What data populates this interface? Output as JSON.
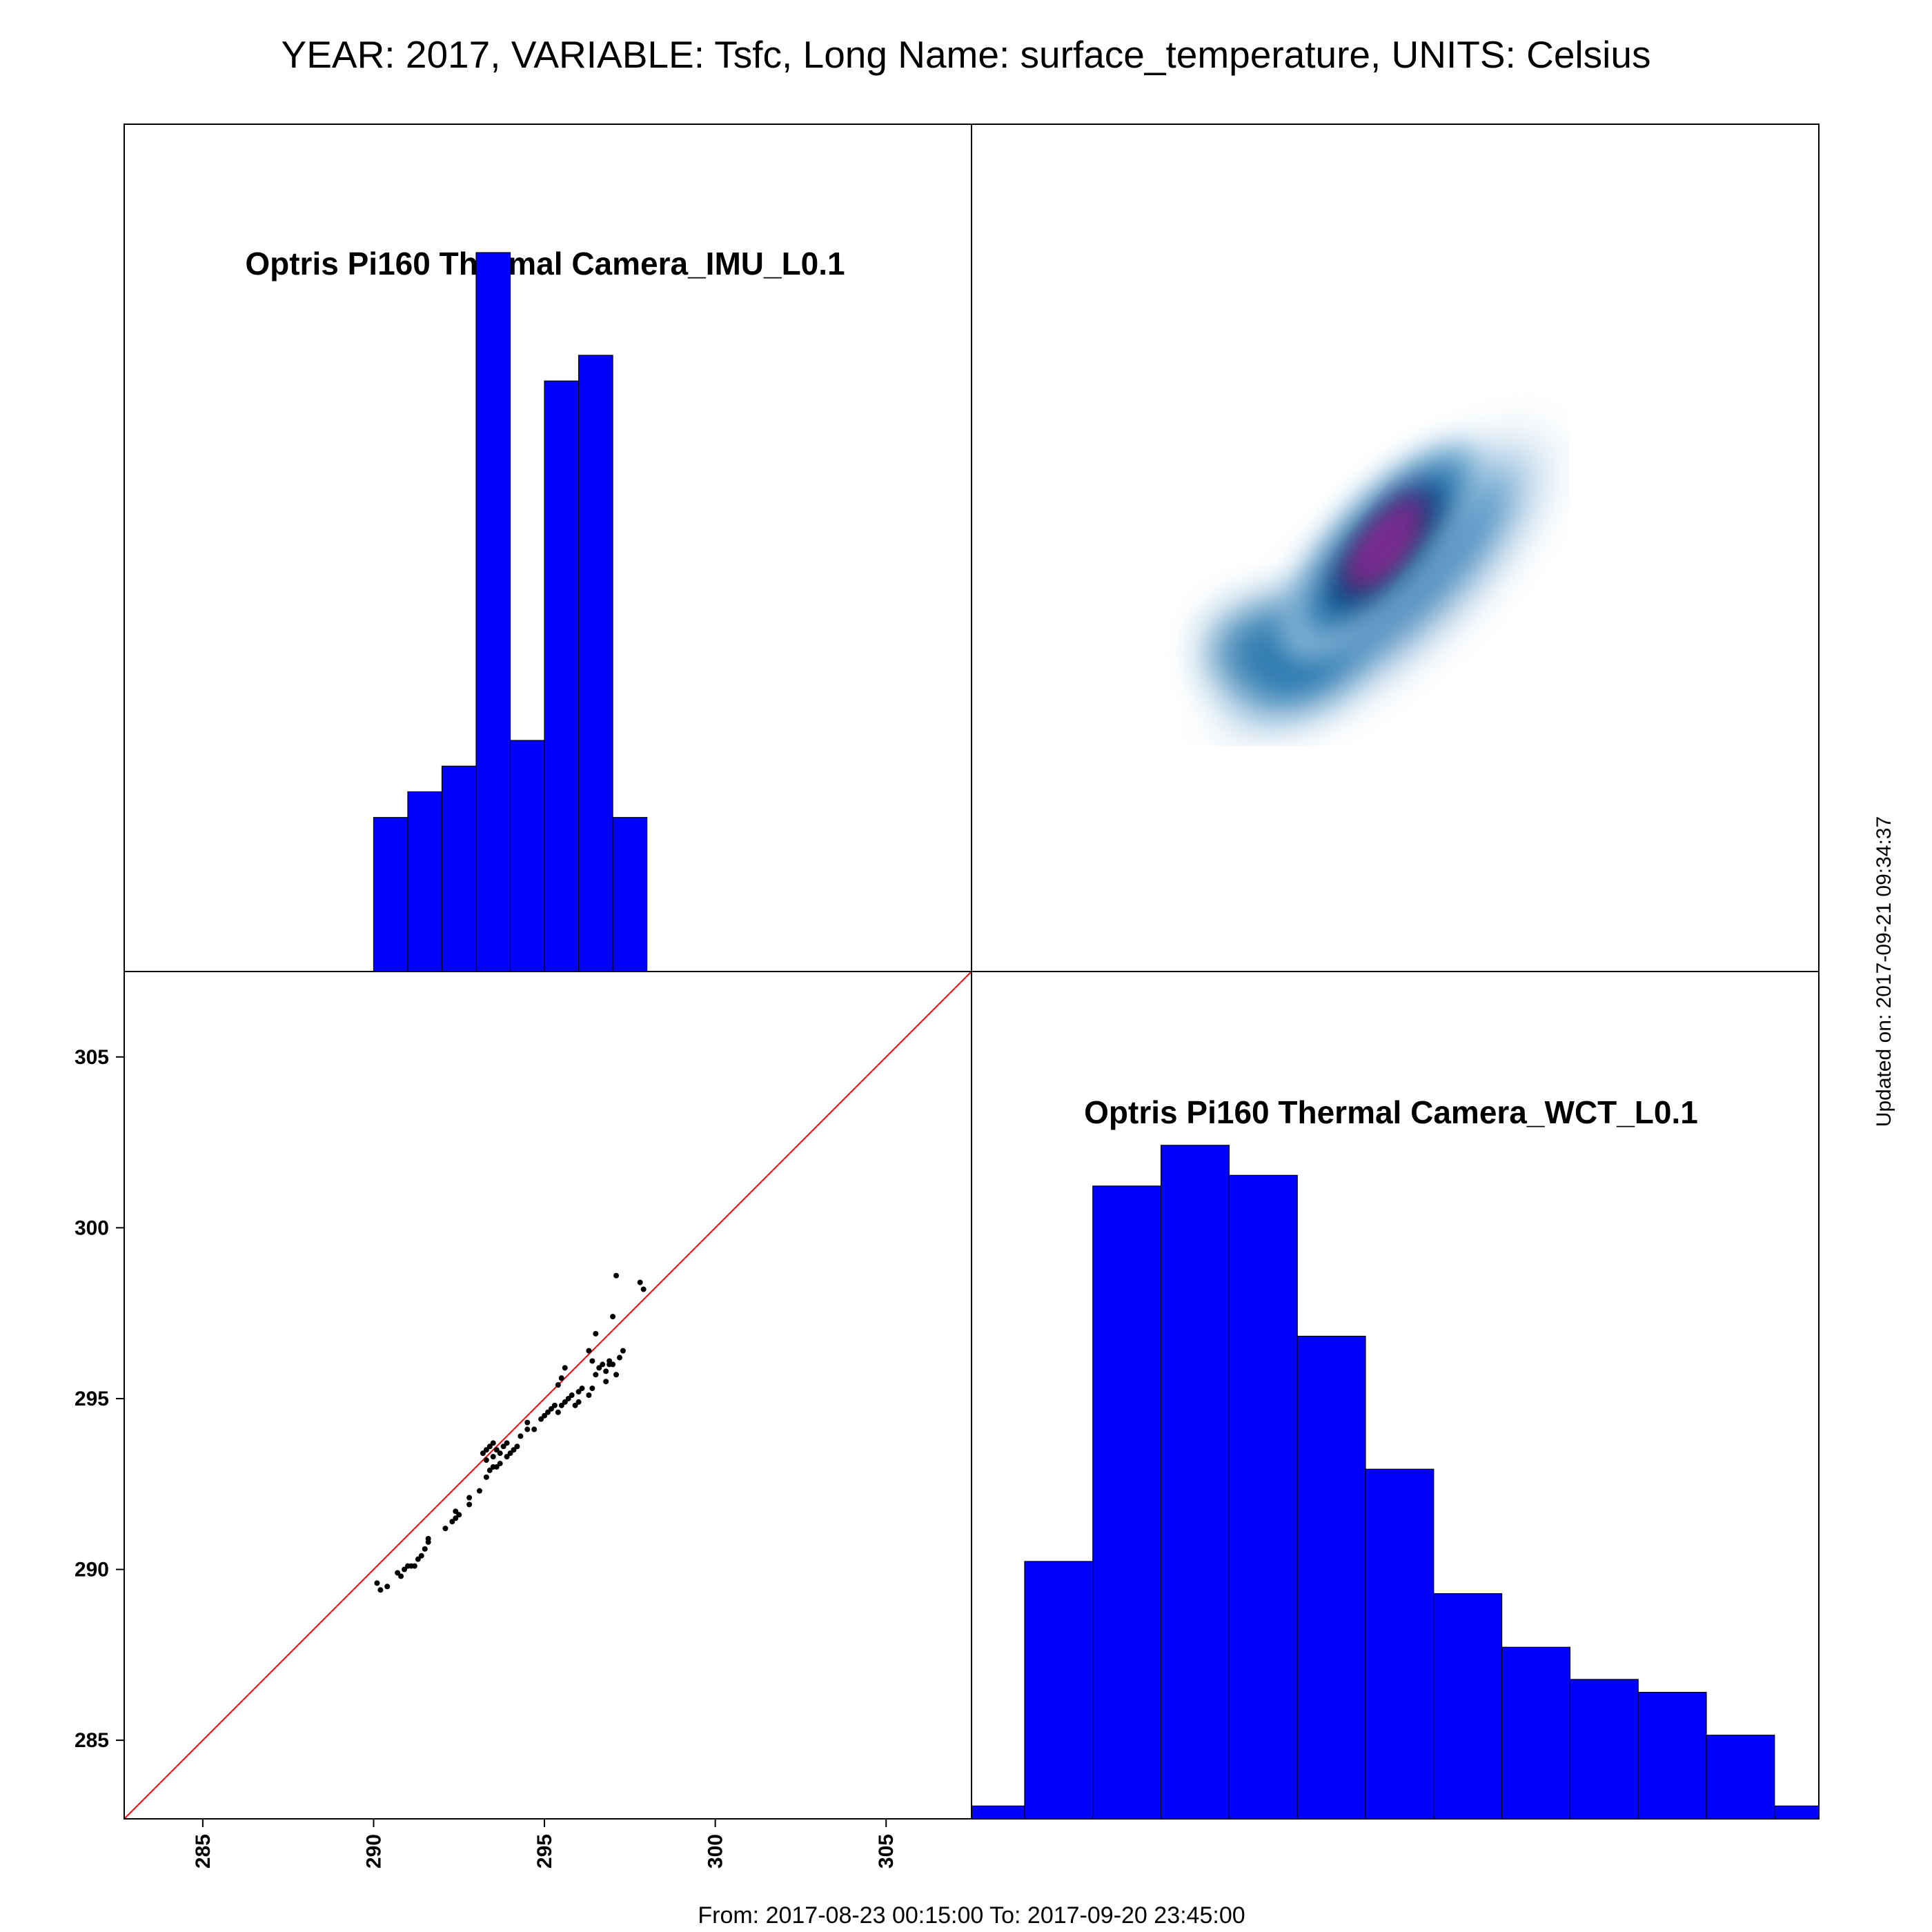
{
  "header": {
    "title": "YEAR: 2017, VARIABLE: Tsfc, Long Name: surface_temperature, UNITS: Celsius"
  },
  "footer": {
    "date_range": "From: 2017-08-23 00:15:00 To: 2017-09-20 23:45:00",
    "updated": "Updated on: 2017-09-21 09:34:37"
  },
  "colors": {
    "bar_fill": "#0000ff",
    "identity_line": "#ff0000",
    "point": "#000000",
    "density_low": "#ffffff",
    "density_mid": "#1f6fa8",
    "density_core": "#0b2d63",
    "density_peak": "#7a2a8f"
  },
  "chart_data": [
    {
      "type": "bar",
      "panel": "top-left",
      "title": "Optris Pi160 Thermal Camera_IMU_L0.1",
      "x_range": [
        282.7,
        307.5
      ],
      "bins": [
        {
          "x0": 290.0,
          "x1": 291.0,
          "count": 3
        },
        {
          "x0": 291.0,
          "x1": 292.0,
          "count": 3.5
        },
        {
          "x0": 292.0,
          "x1": 293.0,
          "count": 4
        },
        {
          "x0": 293.0,
          "x1": 294.0,
          "count": 14
        },
        {
          "x0": 294.0,
          "x1": 295.0,
          "count": 4.5
        },
        {
          "x0": 295.0,
          "x1": 296.0,
          "count": 11.5
        },
        {
          "x0": 296.0,
          "x1": 297.0,
          "count": 12
        },
        {
          "x0": 297.0,
          "x1": 298.0,
          "count": 3
        }
      ],
      "ylim": [
        0,
        16.5
      ]
    },
    {
      "type": "heatmap",
      "panel": "top-right",
      "x_range": [
        282.7,
        307.5
      ],
      "y_range": [
        282.7,
        307.5
      ],
      "extent": {
        "x": [
          287.9,
          300.2
        ],
        "y": [
          289.3,
          300.2
        ]
      },
      "peak": {
        "x": 294.8,
        "y": 295.1
      }
    },
    {
      "type": "scatter",
      "panel": "bottom-left",
      "x_ticks": [
        285,
        290,
        295,
        300,
        305
      ],
      "y_ticks": [
        285,
        290,
        295,
        300,
        305
      ],
      "xlim": [
        282.7,
        307.5
      ],
      "ylim": [
        282.7,
        307.5
      ],
      "identity_line": true,
      "points": [
        [
          290.1,
          289.6
        ],
        [
          290.2,
          289.4
        ],
        [
          290.4,
          289.5
        ],
        [
          290.7,
          289.9
        ],
        [
          290.8,
          289.8
        ],
        [
          290.9,
          290.0
        ],
        [
          291.0,
          290.1
        ],
        [
          291.1,
          290.1
        ],
        [
          291.2,
          290.1
        ],
        [
          291.3,
          290.3
        ],
        [
          291.4,
          290.4
        ],
        [
          291.5,
          290.6
        ],
        [
          291.6,
          290.8
        ],
        [
          291.6,
          290.9
        ],
        [
          292.1,
          291.2
        ],
        [
          292.3,
          291.4
        ],
        [
          292.4,
          291.5
        ],
        [
          292.4,
          291.7
        ],
        [
          292.5,
          291.6
        ],
        [
          292.8,
          291.9
        ],
        [
          292.8,
          292.1
        ],
        [
          293.1,
          292.3
        ],
        [
          293.3,
          292.7
        ],
        [
          293.4,
          292.9
        ],
        [
          293.5,
          293.0
        ],
        [
          293.6,
          293.0
        ],
        [
          293.2,
          293.4
        ],
        [
          293.3,
          293.5
        ],
        [
          293.4,
          293.6
        ],
        [
          293.5,
          293.3
        ],
        [
          293.6,
          293.5
        ],
        [
          293.7,
          293.4
        ],
        [
          293.8,
          293.6
        ],
        [
          293.9,
          293.7
        ],
        [
          293.3,
          293.2
        ],
        [
          293.5,
          293.7
        ],
        [
          293.7,
          293.1
        ],
        [
          293.9,
          293.3
        ],
        [
          294.0,
          293.4
        ],
        [
          294.1,
          293.5
        ],
        [
          294.2,
          293.6
        ],
        [
          294.3,
          293.9
        ],
        [
          294.5,
          294.1
        ],
        [
          294.5,
          294.3
        ],
        [
          294.7,
          294.1
        ],
        [
          294.9,
          294.4
        ],
        [
          295.0,
          294.5
        ],
        [
          295.1,
          294.6
        ],
        [
          295.2,
          294.7
        ],
        [
          295.3,
          294.8
        ],
        [
          295.4,
          294.6
        ],
        [
          295.5,
          294.8
        ],
        [
          295.6,
          294.9
        ],
        [
          295.7,
          295.0
        ],
        [
          295.8,
          295.1
        ],
        [
          295.9,
          294.8
        ],
        [
          296.0,
          294.9
        ],
        [
          296.0,
          295.2
        ],
        [
          296.1,
          295.3
        ],
        [
          295.4,
          295.4
        ],
        [
          295.5,
          295.6
        ],
        [
          295.6,
          295.9
        ],
        [
          296.3,
          295.1
        ],
        [
          296.4,
          295.3
        ],
        [
          296.5,
          295.7
        ],
        [
          296.6,
          295.9
        ],
        [
          296.7,
          296.0
        ],
        [
          296.8,
          295.8
        ],
        [
          296.9,
          296.1
        ],
        [
          297.0,
          296.0
        ],
        [
          297.1,
          295.7
        ],
        [
          297.2,
          296.2
        ],
        [
          296.3,
          296.4
        ],
        [
          296.4,
          296.1
        ],
        [
          296.5,
          296.9
        ],
        [
          296.8,
          295.5
        ],
        [
          296.9,
          296.0
        ],
        [
          297.0,
          297.4
        ],
        [
          297.1,
          298.6
        ],
        [
          297.3,
          296.4
        ],
        [
          297.8,
          298.4
        ],
        [
          297.9,
          298.2
        ]
      ]
    },
    {
      "type": "bar",
      "panel": "bottom-right",
      "title": "Optris Pi160 Thermal Camera_WCT_L0.1",
      "bins": [
        {
          "index": 0,
          "count": 0.6
        },
        {
          "index": 1,
          "count": 12.0
        },
        {
          "index": 2,
          "count": 29.5
        },
        {
          "index": 3,
          "count": 31.4
        },
        {
          "index": 4,
          "count": 30.0
        },
        {
          "index": 5,
          "count": 22.5
        },
        {
          "index": 6,
          "count": 16.3
        },
        {
          "index": 7,
          "count": 10.5
        },
        {
          "index": 8,
          "count": 8.0
        },
        {
          "index": 9,
          "count": 6.5
        },
        {
          "index": 10,
          "count": 5.9
        },
        {
          "index": 11,
          "count": 3.9
        },
        {
          "index": 12,
          "count": 0.6
        }
      ],
      "ylim": [
        0,
        39.5
      ]
    }
  ]
}
